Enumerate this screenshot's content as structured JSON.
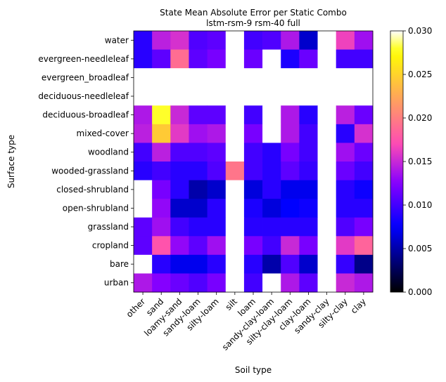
{
  "chart_data": {
    "type": "heatmap",
    "title": "State Mean Absolute Error per Static Combo",
    "subtitle": "lstm-rsm-9 rsm-40 full",
    "xlabel": "Soil type",
    "ylabel": "Surface type",
    "x_categories": [
      "other",
      "sand",
      "loamy-sand",
      "sandy-loam",
      "silty-loam",
      "silt",
      "loam",
      "sandy-clay-loam",
      "silty-clay-loam",
      "clay-loam",
      "sandy-clay",
      "silty-clay",
      "clay"
    ],
    "y_categories": [
      "water",
      "evergreen-needleleaf",
      "evergreen_broadleaf",
      "deciduous-needleleaf",
      "deciduous-broadleaf",
      "mixed-cover",
      "woodland",
      "wooded-grassland",
      "closed-shrubland",
      "open-shrubland",
      "grassland",
      "cropland",
      "bare",
      "urban"
    ],
    "values": [
      [
        0.009,
        0.0145,
        0.0155,
        0.0105,
        0.011,
        null,
        0.01,
        0.0105,
        0.014,
        0.006,
        null,
        0.0165,
        0.0135
      ],
      [
        0.009,
        0.011,
        0.019,
        0.011,
        0.012,
        null,
        0.0115,
        null,
        0.0085,
        0.0115,
        null,
        0.01,
        0.01
      ],
      [
        null,
        null,
        null,
        null,
        null,
        null,
        null,
        null,
        null,
        null,
        null,
        null,
        null
      ],
      [
        null,
        null,
        null,
        null,
        null,
        null,
        null,
        null,
        null,
        null,
        null,
        null,
        null
      ],
      [
        0.014,
        0.028,
        0.015,
        0.011,
        0.011,
        null,
        0.01,
        null,
        0.014,
        0.009,
        null,
        0.0145,
        0.0115
      ],
      [
        0.0145,
        0.0245,
        0.016,
        0.0135,
        0.014,
        null,
        0.012,
        null,
        0.014,
        0.01,
        null,
        0.009,
        0.0155
      ],
      [
        0.01,
        0.0145,
        0.0105,
        0.0105,
        0.011,
        null,
        0.01,
        0.009,
        0.012,
        0.01,
        null,
        0.0135,
        0.0115
      ],
      [
        0.009,
        0.01,
        0.009,
        0.009,
        0.0105,
        0.0195,
        0.01,
        0.009,
        0.011,
        0.0095,
        null,
        0.0115,
        0.01
      ],
      [
        null,
        0.012,
        0.009,
        0.005,
        0.006,
        null,
        0.0065,
        0.009,
        0.007,
        0.007,
        null,
        0.009,
        0.008
      ],
      [
        null,
        0.013,
        0.006,
        0.006,
        0.009,
        null,
        0.0085,
        0.0065,
        0.0075,
        0.008,
        null,
        0.009,
        0.009
      ],
      [
        0.011,
        0.0135,
        0.01,
        0.009,
        0.009,
        null,
        0.009,
        0.009,
        0.009,
        0.009,
        null,
        0.0105,
        0.012
      ],
      [
        0.011,
        0.0175,
        0.013,
        0.011,
        0.0135,
        null,
        0.012,
        0.01,
        0.015,
        0.012,
        null,
        0.016,
        0.0185
      ],
      [
        null,
        0.009,
        0.007,
        0.007,
        0.009,
        null,
        0.009,
        0.005,
        0.0105,
        0.006,
        null,
        0.0095,
        0.004
      ],
      [
        0.014,
        0.0125,
        0.0115,
        0.0105,
        0.012,
        null,
        0.01,
        null,
        0.014,
        0.011,
        null,
        0.015,
        0.014
      ]
    ],
    "colorbar": {
      "colormap": "gnuplot2",
      "range": [
        0.0,
        0.03
      ],
      "ticks": [
        "0.000",
        "0.005",
        "0.010",
        "0.015",
        "0.020",
        "0.025",
        "0.030"
      ]
    },
    "missing_color": "#ffffff",
    "grid": false
  }
}
